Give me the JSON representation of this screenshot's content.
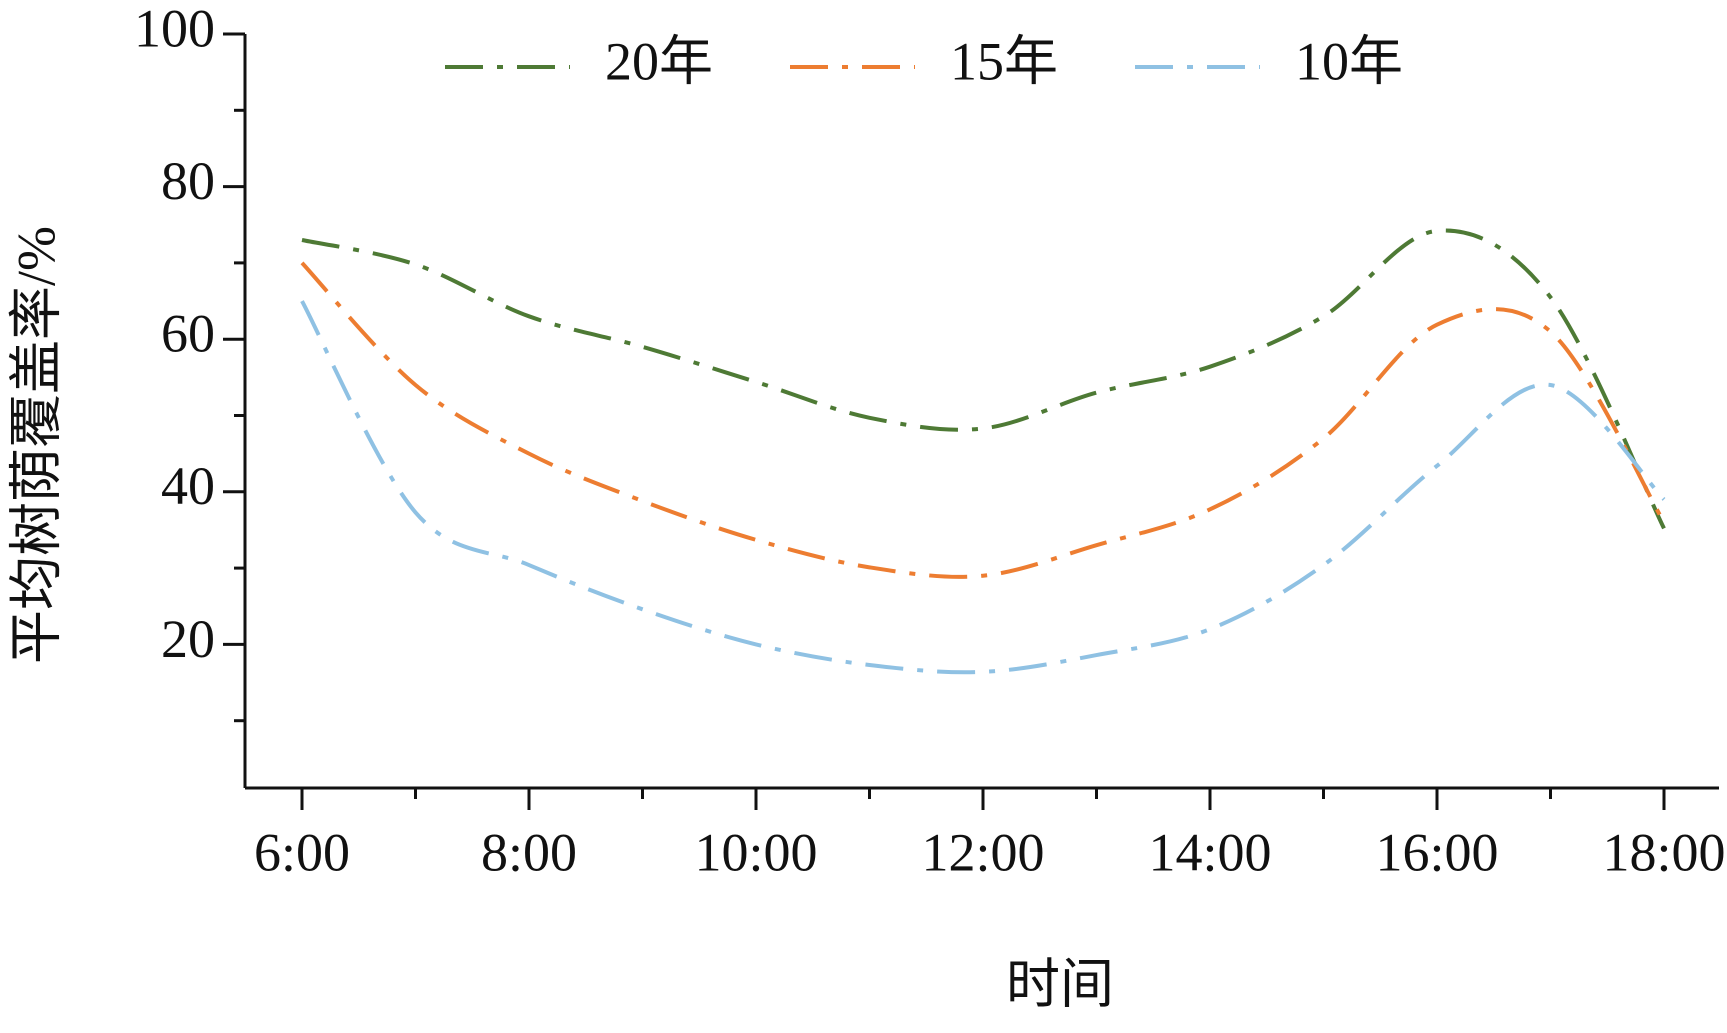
{
  "chart_data": {
    "type": "line",
    "x_label": "时间",
    "y_label": "平均树荫覆盖率/%",
    "categories": [
      "6:00",
      null,
      "8:00",
      null,
      "10:00",
      null,
      "12:00",
      null,
      "14:00",
      null,
      "16:00",
      null,
      "18:00"
    ],
    "ylim": [
      0,
      100
    ],
    "yticks": [
      20,
      40,
      60,
      80,
      100
    ],
    "yminor_ticks": [
      10,
      30,
      50,
      70,
      90
    ],
    "legend": "top",
    "series": [
      {
        "name": "20年",
        "color": "#4e7a35",
        "values": [
          73,
          69.8,
          63,
          59,
          54.4,
          49.7,
          48.3,
          53,
          56.4,
          63,
          74.2,
          65.5,
          35.2
        ]
      },
      {
        "name": "15年",
        "color": "#ed7d31",
        "values": [
          70,
          54,
          45,
          38.8,
          33.7,
          30.1,
          29,
          33,
          37.7,
          47,
          61.9,
          61,
          36
        ]
      },
      {
        "name": "10年",
        "color": "#8fc1e3",
        "values": [
          65,
          37.3,
          30.4,
          24.6,
          20,
          17.3,
          16.4,
          18.6,
          22,
          30.4,
          43.4,
          54,
          39
        ]
      }
    ]
  }
}
